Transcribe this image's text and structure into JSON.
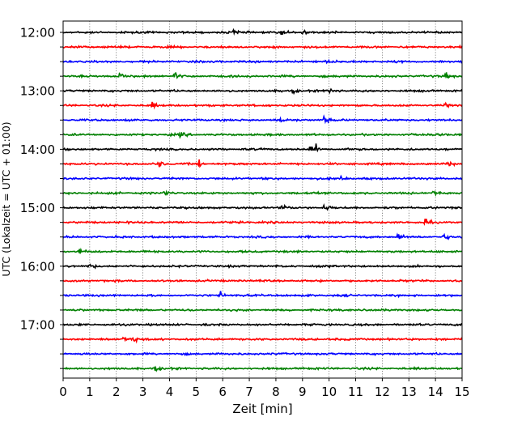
{
  "chart_data": {
    "type": "line",
    "title": "",
    "xlabel": "Zeit  [min]",
    "ylabel": "UTC (Lokalzeit = UTC + 01:00)",
    "xlim": [
      0,
      15
    ],
    "x_ticks": [
      "0",
      "1",
      "2",
      "3",
      "4",
      "5",
      "6",
      "7",
      "8",
      "9",
      "10",
      "11",
      "12",
      "13",
      "14",
      "15"
    ],
    "grid": "vertical dotted",
    "row_interval_minutes": 15,
    "y_tick_labels": [
      "12:00",
      "13:00",
      "14:00",
      "15:00",
      "16:00",
      "17:00"
    ],
    "trace_colors": [
      "#000000",
      "#ff0000",
      "#0000ff",
      "#008000"
    ],
    "rows": [
      {
        "start": "12:00",
        "color": "#000000",
        "events_min": [
          6.4,
          8.2,
          9.0
        ]
      },
      {
        "start": "12:15",
        "color": "#ff0000",
        "events_min": [
          15.0
        ]
      },
      {
        "start": "12:30",
        "color": "#0000ff",
        "events_min": [
          9.9
        ]
      },
      {
        "start": "12:45",
        "color": "#008000",
        "events_min": [
          2.1,
          4.2,
          14.4
        ]
      },
      {
        "start": "13:00",
        "color": "#000000",
        "events_min": [
          8.6,
          10.0
        ]
      },
      {
        "start": "13:15",
        "color": "#ff0000",
        "events_min": [
          3.3,
          14.3
        ]
      },
      {
        "start": "13:30",
        "color": "#0000ff",
        "events_min": [
          8.2,
          9.8
        ]
      },
      {
        "start": "13:45",
        "color": "#008000",
        "events_min": [
          4.4,
          14.1
        ]
      },
      {
        "start": "14:00",
        "color": "#000000",
        "events_min": [
          9.3,
          9.5
        ]
      },
      {
        "start": "14:15",
        "color": "#ff0000",
        "events_min": [
          3.6,
          5.1,
          14.5
        ]
      },
      {
        "start": "14:30",
        "color": "#0000ff",
        "events_min": [
          10.4
        ]
      },
      {
        "start": "14:45",
        "color": "#008000",
        "events_min": [
          3.8,
          13.9
        ]
      },
      {
        "start": "15:00",
        "color": "#000000",
        "events_min": [
          8.2,
          9.8
        ]
      },
      {
        "start": "15:15",
        "color": "#ff0000",
        "events_min": [
          13.6
        ]
      },
      {
        "start": "15:30",
        "color": "#0000ff",
        "events_min": [
          12.6,
          14.3
        ]
      },
      {
        "start": "15:45",
        "color": "#008000",
        "events_min": [
          0.6
        ]
      },
      {
        "start": "16:00",
        "color": "#000000",
        "events_min": [
          1.0
        ]
      },
      {
        "start": "16:15",
        "color": "#ff0000",
        "events_min": []
      },
      {
        "start": "16:30",
        "color": "#0000ff",
        "events_min": [
          5.9
        ]
      },
      {
        "start": "16:45",
        "color": "#008000",
        "events_min": []
      },
      {
        "start": "17:00",
        "color": "#000000",
        "events_min": []
      },
      {
        "start": "17:15",
        "color": "#ff0000",
        "events_min": [
          2.3,
          2.6
        ]
      },
      {
        "start": "17:30",
        "color": "#0000ff",
        "events_min": []
      },
      {
        "start": "17:45",
        "color": "#008000",
        "events_min": [
          3.4
        ]
      }
    ]
  }
}
